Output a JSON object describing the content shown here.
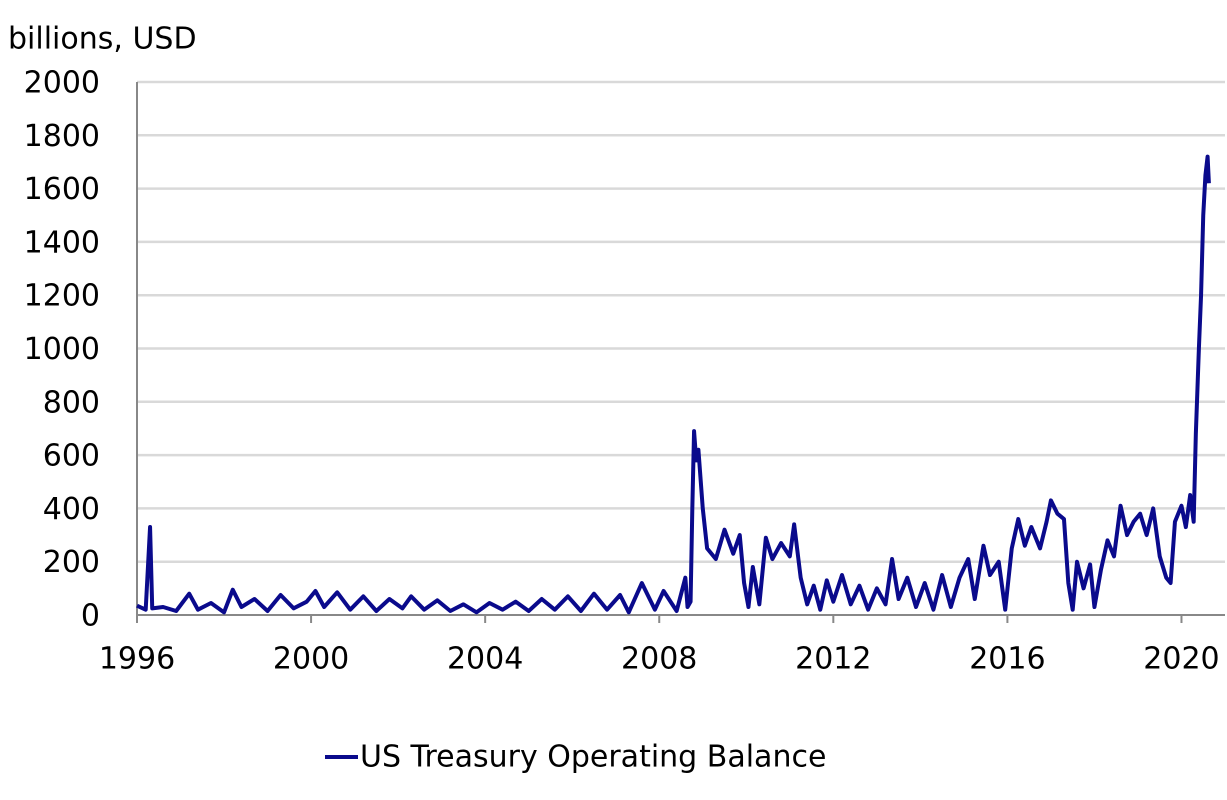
{
  "chart_data": {
    "type": "line",
    "y_axis_label": "billions, USD",
    "x": [
      1996.0,
      1996.2,
      1996.3,
      1996.35,
      1996.6,
      1996.9,
      1997.2,
      1997.4,
      1997.7,
      1998.0,
      1998.2,
      1998.4,
      1998.7,
      1999.0,
      1999.3,
      1999.6,
      1999.9,
      2000.1,
      2000.3,
      2000.6,
      2000.9,
      2001.2,
      2001.5,
      2001.8,
      2002.1,
      2002.3,
      2002.6,
      2002.9,
      2003.2,
      2003.5,
      2003.8,
      2004.1,
      2004.4,
      2004.7,
      2005.0,
      2005.3,
      2005.6,
      2005.9,
      2006.2,
      2006.5,
      2006.8,
      2007.1,
      2007.3,
      2007.6,
      2007.9,
      2008.1,
      2008.4,
      2008.6,
      2008.65,
      2008.72,
      2008.76,
      2008.8,
      2008.85,
      2008.9,
      2009.0,
      2009.1,
      2009.3,
      2009.5,
      2009.7,
      2009.85,
      2009.95,
      2010.05,
      2010.15,
      2010.3,
      2010.45,
      2010.6,
      2010.8,
      2011.0,
      2011.1,
      2011.25,
      2011.4,
      2011.55,
      2011.7,
      2011.85,
      2012.0,
      2012.2,
      2012.4,
      2012.6,
      2012.8,
      2013.0,
      2013.2,
      2013.35,
      2013.5,
      2013.7,
      2013.9,
      2014.1,
      2014.3,
      2014.5,
      2014.7,
      2014.9,
      2015.1,
      2015.25,
      2015.45,
      2015.6,
      2015.8,
      2015.95,
      2016.1,
      2016.25,
      2016.4,
      2016.55,
      2016.75,
      2016.9,
      2017.0,
      2017.15,
      2017.3,
      2017.4,
      2017.5,
      2017.6,
      2017.75,
      2017.9,
      2018.0,
      2018.15,
      2018.3,
      2018.45,
      2018.6,
      2018.75,
      2018.9,
      2019.05,
      2019.2,
      2019.35,
      2019.5,
      2019.65,
      2019.75,
      2019.85,
      2020.0,
      2020.1,
      2020.2,
      2020.28,
      2020.33,
      2020.4,
      2020.45,
      2020.5,
      2020.55,
      2020.6,
      2020.63
    ],
    "series": [
      {
        "name": "US Treasury Operating Balance",
        "color": "#0a0a8c",
        "values": [
          35,
          20,
          330,
          25,
          30,
          15,
          80,
          20,
          45,
          10,
          95,
          30,
          60,
          15,
          75,
          25,
          50,
          90,
          30,
          85,
          20,
          70,
          15,
          60,
          25,
          70,
          20,
          55,
          15,
          40,
          10,
          45,
          20,
          50,
          15,
          60,
          20,
          70,
          15,
          80,
          20,
          75,
          10,
          120,
          20,
          90,
          15,
          140,
          30,
          50,
          400,
          690,
          580,
          620,
          400,
          250,
          210,
          320,
          230,
          300,
          120,
          30,
          180,
          40,
          290,
          210,
          270,
          220,
          340,
          140,
          40,
          110,
          20,
          130,
          50,
          150,
          40,
          110,
          20,
          100,
          40,
          210,
          60,
          140,
          30,
          120,
          20,
          150,
          30,
          140,
          210,
          60,
          260,
          150,
          200,
          20,
          250,
          360,
          260,
          330,
          250,
          350,
          430,
          380,
          360,
          120,
          20,
          200,
          100,
          190,
          30,
          170,
          280,
          220,
          410,
          300,
          350,
          380,
          300,
          400,
          220,
          140,
          120,
          350,
          410,
          330,
          450,
          350,
          680,
          1000,
          1200,
          1500,
          1650,
          1720,
          1620
        ]
      }
    ],
    "xlim": [
      1996,
      2021
    ],
    "xticks": [
      1996,
      2000,
      2004,
      2008,
      2012,
      2016,
      2020
    ],
    "ylim": [
      0,
      2000
    ],
    "yticks": [
      0,
      200,
      400,
      600,
      800,
      1000,
      1200,
      1400,
      1600,
      1800,
      2000
    ],
    "grid": true,
    "legend": "bottom"
  }
}
